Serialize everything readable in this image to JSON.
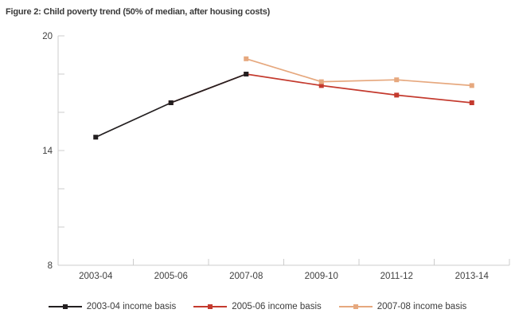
{
  "title": "Figure 2: Child poverty trend (50% of median, after housing costs)",
  "colors": {
    "background": "#ffffff",
    "axis": "#cccccc",
    "tick_label": "#3f3f3f",
    "title_text": "#3a3a3a",
    "series_black": "#231f20",
    "series_red": "#c43a2e",
    "series_tan": "#e6a87e"
  },
  "chart_data": {
    "type": "line",
    "title": "Figure 2: Child poverty trend (50% of median, after housing costs)",
    "categories": [
      "2003-04",
      "2005-06",
      "2007-08",
      "2009-10",
      "2011-12",
      "2013-14"
    ],
    "series": [
      {
        "name": "2003-04 income basis",
        "color": "#231f20",
        "values": [
          14.7,
          16.5,
          18.0,
          null,
          null,
          null
        ]
      },
      {
        "name": "2005-06 income basis",
        "color": "#c43a2e",
        "values": [
          null,
          16.5,
          18.0,
          17.4,
          16.9,
          16.5
        ]
      },
      {
        "name": "2007-08 income basis",
        "color": "#e6a87e",
        "values": [
          null,
          null,
          18.8,
          17.6,
          17.7,
          17.4
        ]
      }
    ],
    "xlabel": "",
    "ylabel": "",
    "ylim": [
      8,
      20
    ],
    "ytick_step": 2,
    "ytick_labeled": [
      8,
      14,
      20
    ],
    "grid": false,
    "legend_position": "bottom",
    "marker": "square"
  }
}
